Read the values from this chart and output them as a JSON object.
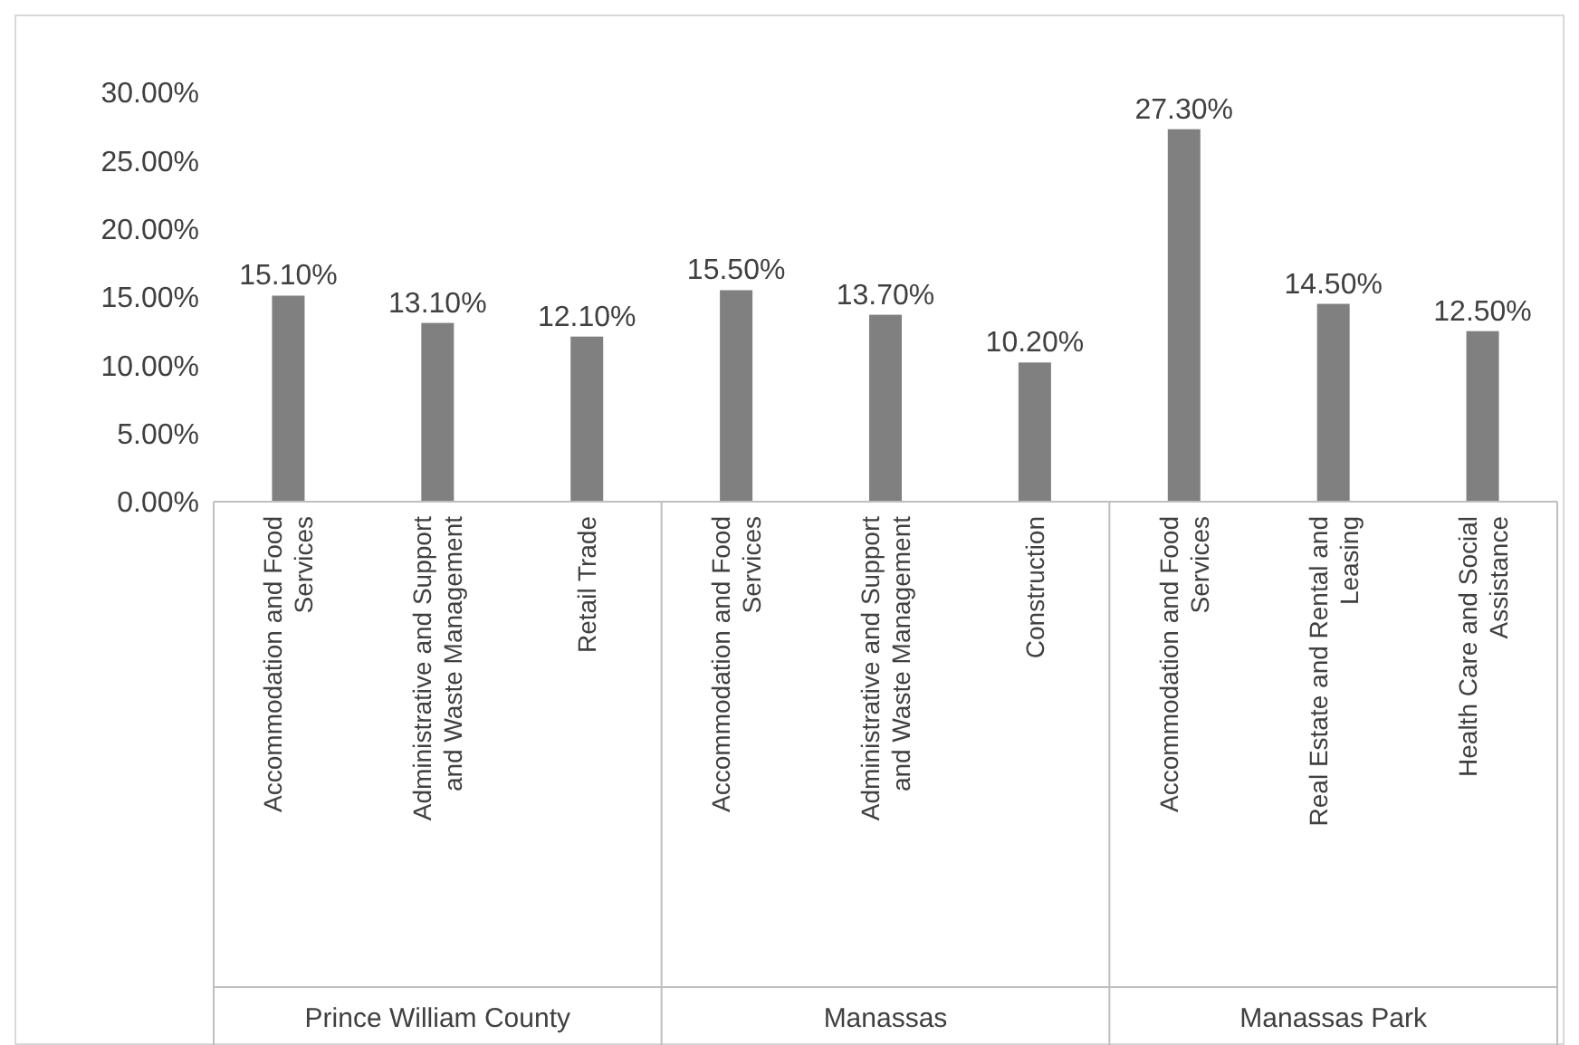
{
  "chart_data": {
    "type": "bar",
    "categories": [
      "Accommodation and Food Services",
      "Administrative and Support and Waste Management",
      "Retail Trade",
      "Accommodation and Food Services",
      "Administrative and Support and Waste Management",
      "Construction",
      "Accommodation and Food Services",
      "Real Estate and Rental and Leasing",
      "Health Care and Social Assistance"
    ],
    "values": [
      15.1,
      13.1,
      12.1,
      15.5,
      13.7,
      10.2,
      27.3,
      14.5,
      12.5
    ],
    "value_labels": [
      "15.10%",
      "13.10%",
      "12.10%",
      "15.50%",
      "13.70%",
      "10.20%",
      "27.30%",
      "14.50%",
      "12.50%"
    ],
    "color": "#808080",
    "ylim": [
      0,
      30
    ],
    "yticks": [
      {
        "value": 0,
        "label": "0.00%"
      },
      {
        "value": 5,
        "label": "5.00%"
      },
      {
        "value": 10,
        "label": "10.00%"
      },
      {
        "value": 15,
        "label": "15.00%"
      },
      {
        "value": 20,
        "label": "20.00%"
      },
      {
        "value": 25,
        "label": "25.00%"
      },
      {
        "value": 30,
        "label": "30.00%"
      }
    ],
    "annotations": [
      "Prince William County",
      "Manassas",
      "Manassas Park"
    ],
    "grid": false
  }
}
